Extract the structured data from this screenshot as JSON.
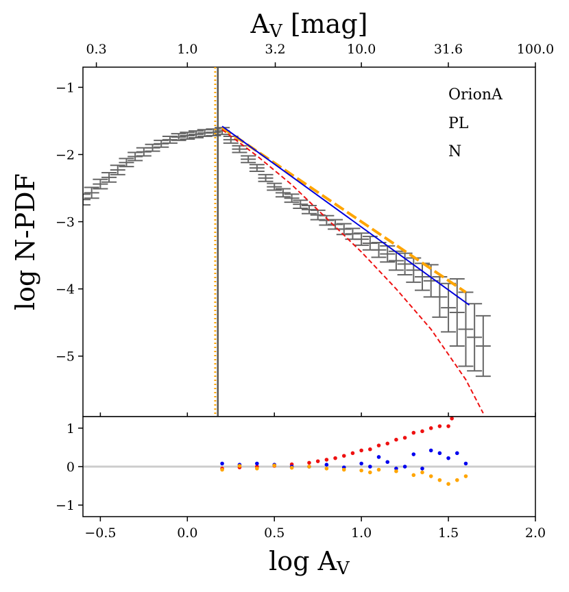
{
  "chart_data": [
    {
      "type": "scatter",
      "panel": "main",
      "xlabel": "log A",
      "xlabel_sub": "V",
      "ylabel": "log N-PDF",
      "top_xlabel": "A",
      "top_xlabel_sub": "V",
      "top_xlabel_unit": " [mag]",
      "xlim": [
        -0.6,
        2.0
      ],
      "ylim": [
        -5.9,
        -0.7
      ],
      "x_ticks": [
        -0.5,
        0.0,
        0.5,
        1.0,
        1.5,
        2.0
      ],
      "x_tick_labels": [
        "−0.5",
        "0.0",
        "0.5",
        "1.0",
        "1.5",
        "2.0"
      ],
      "y_ticks": [
        -1,
        -2,
        -3,
        -4,
        -5
      ],
      "y_tick_labels": [
        "−1",
        "−2",
        "−3",
        "−4",
        "−5"
      ],
      "top_ticks": [
        0.3,
        1.0,
        3.2,
        10.0,
        31.6,
        100.0
      ],
      "top_tick_labels": [
        "0.3",
        "1.0",
        "3.2",
        "10.0",
        "31.6",
        "100.0"
      ],
      "annotations": [
        "OrionA",
        "PL",
        "N"
      ],
      "series": [
        {
          "name": "N-PDF data",
          "style": "errorbar",
          "color": "#666666",
          "x": [
            -0.6,
            -0.55,
            -0.5,
            -0.45,
            -0.4,
            -0.35,
            -0.3,
            -0.25,
            -0.2,
            -0.15,
            -0.1,
            -0.05,
            0.0,
            0.05,
            0.1,
            0.15,
            0.2,
            0.25,
            0.3,
            0.35,
            0.4,
            0.45,
            0.5,
            0.55,
            0.6,
            0.65,
            0.7,
            0.75,
            0.8,
            0.85,
            0.9,
            0.95,
            1.0,
            1.05,
            1.1,
            1.15,
            1.2,
            1.25,
            1.3,
            1.35,
            1.4,
            1.45,
            1.5,
            1.55,
            1.6,
            1.65,
            1.7
          ],
          "y": [
            -2.67,
            -2.57,
            -2.44,
            -2.34,
            -2.23,
            -2.12,
            -2.03,
            -1.96,
            -1.9,
            -1.84,
            -1.78,
            -1.74,
            -1.72,
            -1.7,
            -1.68,
            -1.67,
            -1.65,
            -1.78,
            -1.92,
            -2.07,
            -2.2,
            -2.35,
            -2.48,
            -2.57,
            -2.65,
            -2.74,
            -2.82,
            -2.9,
            -2.98,
            -3.04,
            -3.11,
            -3.18,
            -3.26,
            -3.32,
            -3.42,
            -3.48,
            -3.58,
            -3.63,
            -3.72,
            -3.82,
            -3.88,
            -4.12,
            -4.28,
            -4.35,
            -4.6,
            -4.72,
            -4.85
          ],
          "yerr": [
            0.08,
            0.08,
            0.07,
            0.07,
            0.07,
            0.06,
            0.06,
            0.06,
            0.05,
            0.05,
            0.05,
            0.05,
            0.05,
            0.05,
            0.05,
            0.05,
            0.05,
            0.05,
            0.05,
            0.05,
            0.05,
            0.05,
            0.05,
            0.06,
            0.06,
            0.06,
            0.06,
            0.07,
            0.07,
            0.07,
            0.08,
            0.08,
            0.09,
            0.1,
            0.11,
            0.12,
            0.14,
            0.16,
            0.18,
            0.2,
            0.24,
            0.3,
            0.36,
            0.5,
            0.55,
            0.5,
            0.45
          ]
        },
        {
          "name": "power-law fit",
          "style": "line",
          "color": "#0000dd",
          "x": [
            0.2,
            1.62
          ],
          "y": [
            -1.58,
            -4.24
          ]
        },
        {
          "name": "alternate power-law fit",
          "style": "dashed",
          "color": "#ffa500",
          "x": [
            0.2,
            1.6
          ],
          "y": [
            -1.6,
            -4.05
          ]
        },
        {
          "name": "log-normal fit",
          "style": "dashed",
          "color": "#ee1111",
          "x": [
            0.2,
            0.4,
            0.6,
            0.8,
            1.0,
            1.2,
            1.4,
            1.6,
            1.7
          ],
          "y": [
            -1.63,
            -2.02,
            -2.45,
            -2.95,
            -3.45,
            -4.0,
            -4.6,
            -5.35,
            -5.85
          ]
        }
      ],
      "vlines": [
        {
          "name": "threshold",
          "x": 0.175,
          "color": "#555555",
          "style": "solid"
        },
        {
          "name": "alternate threshold",
          "x": 0.16,
          "color": "#ffa500",
          "style": "dotted"
        }
      ]
    },
    {
      "type": "scatter",
      "panel": "residual",
      "xlim": [
        -0.6,
        2.0
      ],
      "ylim": [
        -1.3,
        1.3
      ],
      "y_ticks": [
        1,
        0,
        -1
      ],
      "y_tick_labels": [
        "1",
        "0",
        "−1"
      ],
      "reference_line": 0,
      "series": [
        {
          "name": "log-normal residual",
          "color": "#ee1111",
          "x": [
            0.2,
            0.3,
            0.4,
            0.5,
            0.6,
            0.7,
            0.75,
            0.8,
            0.85,
            0.9,
            0.95,
            1.0,
            1.05,
            1.1,
            1.15,
            1.2,
            1.25,
            1.3,
            1.35,
            1.4,
            1.45,
            1.5,
            1.52
          ],
          "y": [
            -0.05,
            -0.02,
            0.0,
            0.02,
            0.06,
            0.1,
            0.14,
            0.18,
            0.22,
            0.28,
            0.35,
            0.42,
            0.45,
            0.55,
            0.6,
            0.7,
            0.75,
            0.88,
            0.92,
            1.0,
            1.05,
            1.05,
            1.25
          ]
        },
        {
          "name": "power-law residual",
          "color": "#0000ee",
          "x": [
            0.2,
            0.3,
            0.4,
            0.5,
            0.6,
            0.7,
            0.8,
            0.9,
            1.0,
            1.05,
            1.1,
            1.15,
            1.2,
            1.25,
            1.3,
            1.35,
            1.4,
            1.45,
            1.5,
            1.55,
            1.6
          ],
          "y": [
            0.08,
            0.05,
            0.08,
            0.05,
            0.0,
            0.0,
            0.05,
            -0.02,
            0.08,
            0.0,
            0.25,
            0.12,
            -0.05,
            0.0,
            0.32,
            -0.05,
            0.42,
            0.35,
            0.22,
            0.35,
            0.08
          ]
        },
        {
          "name": "alternate power-law residual",
          "color": "#ffa500",
          "x": [
            0.2,
            0.3,
            0.4,
            0.5,
            0.6,
            0.7,
            0.8,
            0.9,
            1.0,
            1.05,
            1.1,
            1.2,
            1.3,
            1.35,
            1.4,
            1.45,
            1.5,
            1.55,
            1.6
          ],
          "y": [
            -0.08,
            0.02,
            -0.05,
            0.03,
            -0.03,
            0.0,
            -0.05,
            -0.08,
            -0.1,
            -0.15,
            -0.08,
            -0.12,
            -0.22,
            -0.15,
            -0.25,
            -0.35,
            -0.45,
            -0.35,
            -0.25
          ]
        }
      ]
    }
  ]
}
